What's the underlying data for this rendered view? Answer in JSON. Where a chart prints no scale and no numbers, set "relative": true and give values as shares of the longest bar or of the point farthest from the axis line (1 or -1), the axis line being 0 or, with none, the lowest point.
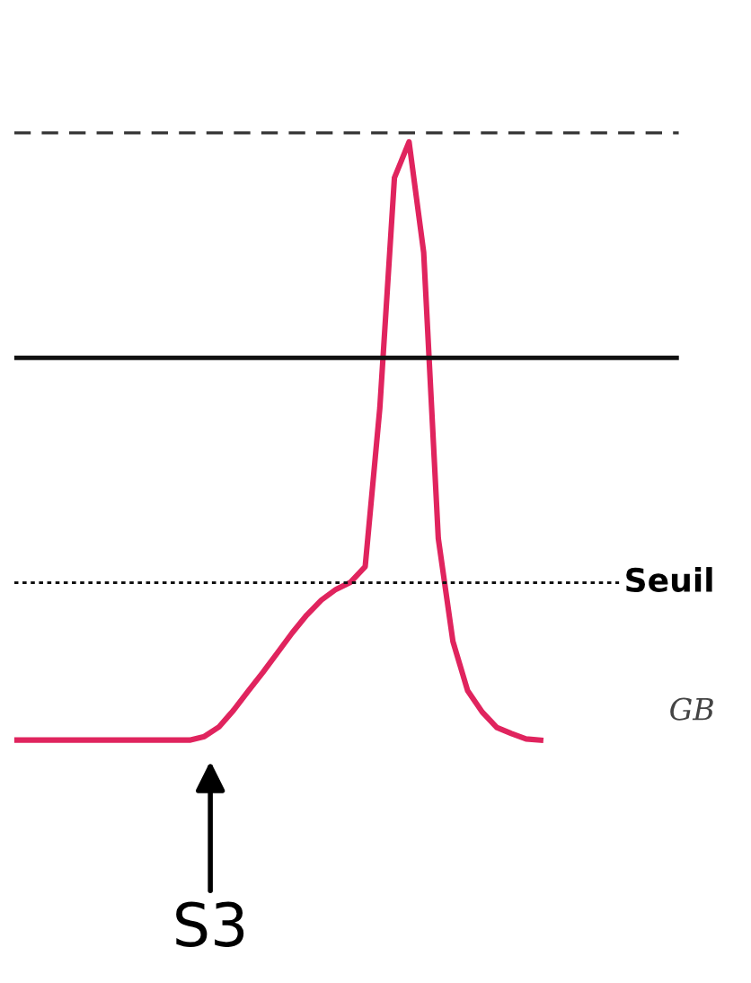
{
  "chart_data": {
    "type": "line",
    "relative": true,
    "categories": [
      null,
      null,
      null,
      null,
      null,
      null,
      null,
      null,
      null,
      null,
      null,
      null,
      null,
      null,
      null,
      null,
      null,
      null,
      null,
      null,
      null,
      null,
      null,
      null,
      null,
      null,
      null,
      null,
      null,
      null,
      null,
      null,
      null,
      null,
      null,
      null,
      null
    ],
    "legend": false,
    "marker": "none",
    "line_style": "solid",
    "series": [
      {
        "color": "#e0245e",
        "values": [
          0,
          0,
          0,
          0,
          0,
          0,
          0,
          0,
          0,
          0,
          0,
          0,
          0,
          0.006,
          0.022,
          0.05,
          0.082,
          0.113,
          0.146,
          0.179,
          0.209,
          0.234,
          0.252,
          0.264,
          0.29,
          0.555,
          0.94,
          1,
          0.815,
          0.337,
          0.165,
          0.083,
          0.047,
          0.021,
          0.011,
          0.002,
          0
        ]
      }
    ],
    "ref_lines": [
      {
        "axis": "y",
        "value": 1.015,
        "label": null,
        "color": "#333333",
        "line_style": "dashed"
      },
      {
        "axis": "y",
        "value": 0.639,
        "label": null,
        "color": "#111111",
        "line_style": "solid"
      },
      {
        "axis": "y",
        "value": 0.263,
        "label": "Seuil",
        "color": "#111111",
        "line_style": "dotted"
      }
    ],
    "annotations": [
      "S3",
      "GB"
    ]
  }
}
